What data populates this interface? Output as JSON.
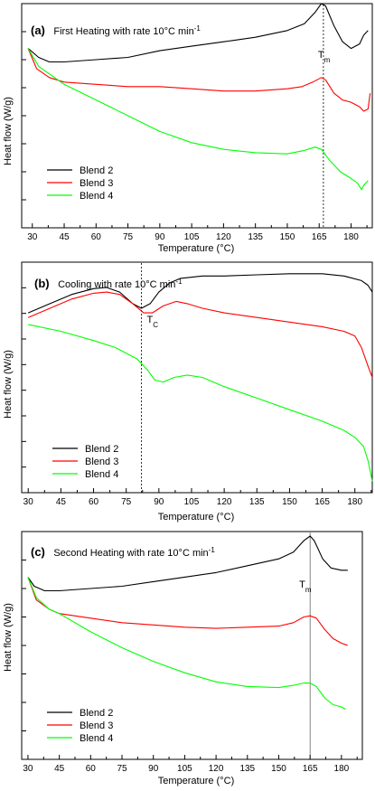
{
  "chart_data": [
    {
      "type": "line",
      "panel_label": "(a)",
      "title": "First Heating with rate 10°C min-1",
      "xlabel": "Temperature (°C)",
      "ylabel": "Heat flow (W/g)",
      "xlim": [
        25,
        190
      ],
      "ylim": [
        0,
        100
      ],
      "x_ticks": [
        30,
        45,
        60,
        75,
        90,
        105,
        120,
        135,
        150,
        165,
        180
      ],
      "legend_position": "bottom-left",
      "annotation": {
        "text": "T",
        "sub": "m",
        "x": 167
      },
      "series": [
        {
          "name": "Blend 2",
          "color": "#000000",
          "points": [
            [
              28,
              80
            ],
            [
              33,
              76
            ],
            [
              38,
              74
            ],
            [
              45,
              74
            ],
            [
              60,
              75
            ],
            [
              75,
              76
            ],
            [
              90,
              79
            ],
            [
              105,
              81
            ],
            [
              120,
              83
            ],
            [
              135,
              85
            ],
            [
              150,
              88
            ],
            [
              158,
              91
            ],
            [
              163,
              96
            ],
            [
              166,
              100
            ],
            [
              168,
              99
            ],
            [
              172,
              90
            ],
            [
              176,
              83
            ],
            [
              180,
              80
            ],
            [
              184,
              82
            ],
            [
              186,
              86
            ],
            [
              188,
              88
            ]
          ]
        },
        {
          "name": "Blend 3",
          "color": "#ff0000",
          "points": [
            [
              28,
              80
            ],
            [
              32,
              71
            ],
            [
              38,
              67
            ],
            [
              45,
              65
            ],
            [
              60,
              64
            ],
            [
              75,
              63
            ],
            [
              90,
              63
            ],
            [
              105,
              62
            ],
            [
              120,
              61
            ],
            [
              135,
              61
            ],
            [
              150,
              62
            ],
            [
              157,
              63
            ],
            [
              162,
              65
            ],
            [
              166,
              67
            ],
            [
              168,
              66
            ],
            [
              172,
              60
            ],
            [
              176,
              57
            ],
            [
              180,
              56
            ],
            [
              184,
              54
            ],
            [
              186,
              52
            ],
            [
              188,
              53
            ],
            [
              189,
              60
            ]
          ]
        },
        {
          "name": "Blend 4",
          "color": "#00ff00",
          "points": [
            [
              28,
              80
            ],
            [
              33,
              72
            ],
            [
              45,
              64
            ],
            [
              60,
              57
            ],
            [
              75,
              50
            ],
            [
              90,
              43
            ],
            [
              105,
              38
            ],
            [
              120,
              35
            ],
            [
              135,
              33.5
            ],
            [
              150,
              33
            ],
            [
              158,
              34.5
            ],
            [
              163,
              36
            ],
            [
              166,
              35
            ],
            [
              170,
              30
            ],
            [
              175,
              25
            ],
            [
              180,
              22
            ],
            [
              183,
              20
            ],
            [
              185,
              17
            ],
            [
              186,
              19
            ],
            [
              188,
              21
            ]
          ]
        }
      ]
    },
    {
      "type": "line",
      "panel_label": "(b)",
      "title": "Cooling with rate 10°C min-1",
      "xlabel": "Temperature (°C)",
      "ylabel": "Heat flow (W/g)",
      "xlim": [
        27,
        188
      ],
      "ylim": [
        0,
        100
      ],
      "x_ticks": [
        30,
        45,
        60,
        75,
        90,
        105,
        120,
        135,
        150,
        165,
        180
      ],
      "legend_position": "bottom-left",
      "annotation": {
        "text": "T",
        "sub": "C",
        "x": 82
      },
      "series": [
        {
          "name": "Blend 2",
          "color": "#000000",
          "points": [
            [
              30,
              78
            ],
            [
              40,
              82
            ],
            [
              50,
              86
            ],
            [
              60,
              88.5
            ],
            [
              66,
              89
            ],
            [
              72,
              87
            ],
            [
              78,
              82
            ],
            [
              82,
              80
            ],
            [
              86,
              82
            ],
            [
              90,
              87
            ],
            [
              95,
              91
            ],
            [
              100,
              93
            ],
            [
              110,
              94
            ],
            [
              120,
              94
            ],
            [
              135,
              94.5
            ],
            [
              150,
              95
            ],
            [
              165,
              95
            ],
            [
              175,
              94
            ],
            [
              183,
              92
            ],
            [
              186,
              90
            ],
            [
              188,
              87
            ]
          ]
        },
        {
          "name": "Blend 3",
          "color": "#ff0000",
          "points": [
            [
              30,
              76
            ],
            [
              40,
              80
            ],
            [
              50,
              84
            ],
            [
              60,
              86.5
            ],
            [
              66,
              87
            ],
            [
              72,
              86
            ],
            [
              78,
              82
            ],
            [
              83,
              78
            ],
            [
              87,
              78
            ],
            [
              92,
              81
            ],
            [
              98,
              83
            ],
            [
              103,
              82
            ],
            [
              110,
              80
            ],
            [
              120,
              78
            ],
            [
              135,
              76
            ],
            [
              150,
              74
            ],
            [
              165,
              72
            ],
            [
              175,
              70
            ],
            [
              180,
              68
            ],
            [
              183,
              63
            ],
            [
              186,
              55
            ],
            [
              188,
              50
            ]
          ]
        },
        {
          "name": "Blend 4",
          "color": "#00ff00",
          "points": [
            [
              30,
              73
            ],
            [
              45,
              70
            ],
            [
              60,
              66
            ],
            [
              70,
              63
            ],
            [
              80,
              58
            ],
            [
              85,
              53
            ],
            [
              88,
              49
            ],
            [
              92,
              48
            ],
            [
              97,
              50
            ],
            [
              103,
              51
            ],
            [
              110,
              50
            ],
            [
              120,
              46
            ],
            [
              135,
              41
            ],
            [
              150,
              36
            ],
            [
              165,
              31
            ],
            [
              175,
              27
            ],
            [
              180,
              24
            ],
            [
              184,
              20
            ],
            [
              186,
              14
            ],
            [
              188,
              5
            ]
          ]
        }
      ]
    },
    {
      "type": "line",
      "panel_label": "(c)",
      "title": "Second Heating with rate 10°C min-1",
      "xlabel": "Temperature (°C)",
      "ylabel": "Heat flow (W/g)",
      "xlim": [
        27,
        190
      ],
      "ylim": [
        0,
        100
      ],
      "x_ticks": [
        30,
        45,
        60,
        75,
        90,
        105,
        120,
        135,
        150,
        165,
        180
      ],
      "legend_position": "bottom-left",
      "annotation": {
        "text": "T",
        "sub": "m",
        "x": 165
      },
      "series": [
        {
          "name": "Blend 2",
          "color": "#000000",
          "points": [
            [
              30,
              80
            ],
            [
              33,
              76
            ],
            [
              38,
              74
            ],
            [
              45,
              74
            ],
            [
              60,
              75
            ],
            [
              75,
              76
            ],
            [
              90,
              78
            ],
            [
              105,
              80
            ],
            [
              120,
              82
            ],
            [
              135,
              85
            ],
            [
              150,
              88
            ],
            [
              157,
              91
            ],
            [
              162,
              96
            ],
            [
              165,
              98
            ],
            [
              167,
              96
            ],
            [
              171,
              88
            ],
            [
              175,
              84
            ],
            [
              180,
              83
            ],
            [
              183,
              83
            ]
          ]
        },
        {
          "name": "Blend 3",
          "color": "#ff0000",
          "points": [
            [
              30,
              80
            ],
            [
              34,
              70
            ],
            [
              40,
              66
            ],
            [
              45,
              64
            ],
            [
              60,
              62
            ],
            [
              75,
              60
            ],
            [
              90,
              59
            ],
            [
              105,
              58
            ],
            [
              120,
              57.5
            ],
            [
              135,
              58
            ],
            [
              150,
              58.5
            ],
            [
              157,
              60
            ],
            [
              162,
              62.5
            ],
            [
              165,
              63
            ],
            [
              168,
              62
            ],
            [
              172,
              57
            ],
            [
              176,
              53
            ],
            [
              180,
              51
            ],
            [
              183,
              50
            ]
          ]
        },
        {
          "name": "Blend 4",
          "color": "#00ff00",
          "points": [
            [
              30,
              80
            ],
            [
              34,
              71
            ],
            [
              40,
              66
            ],
            [
              45,
              64
            ],
            [
              60,
              56
            ],
            [
              75,
              49
            ],
            [
              90,
              43
            ],
            [
              105,
              38
            ],
            [
              120,
              34
            ],
            [
              135,
              32
            ],
            [
              150,
              31.5
            ],
            [
              157,
              32.5
            ],
            [
              162,
              33.5
            ],
            [
              165,
              33.5
            ],
            [
              168,
              32
            ],
            [
              172,
              27
            ],
            [
              176,
              24
            ],
            [
              180,
              23
            ],
            [
              182,
              22
            ]
          ]
        }
      ]
    }
  ]
}
